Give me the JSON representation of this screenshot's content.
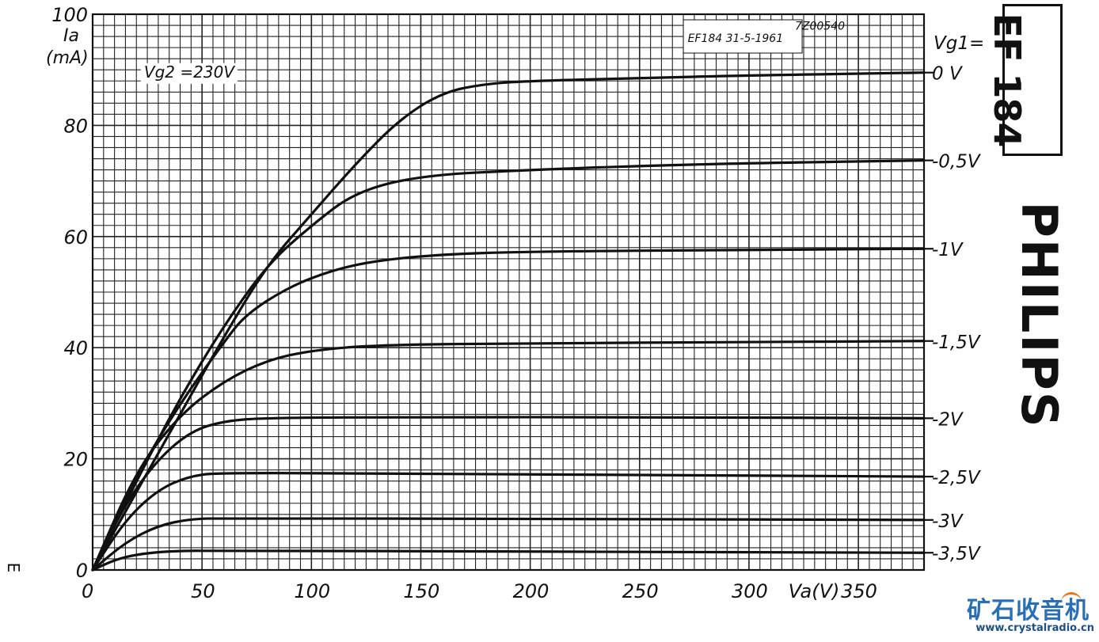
{
  "chart_data": {
    "type": "line",
    "title": "",
    "ref_code": "7Z00540",
    "datasheet_ref": "EF184 31-5-1961",
    "condition": "Vg2 =230V",
    "xlabel": "Va(V)",
    "ylabel_line1": "Ia",
    "ylabel_line2": "(mA)",
    "series_label_header": "Vg1=",
    "xlim": [
      0,
      380
    ],
    "ylim": [
      0,
      100
    ],
    "grid": true,
    "x_ticks": [
      {
        "v": 0,
        "label": "0"
      },
      {
        "v": 50,
        "label": "50"
      },
      {
        "v": 100,
        "label": "100"
      },
      {
        "v": 150,
        "label": "150"
      },
      {
        "v": 200,
        "label": "200"
      },
      {
        "v": 250,
        "label": "250"
      },
      {
        "v": 300,
        "label": "300"
      },
      {
        "v": 350,
        "label": "350"
      }
    ],
    "y_ticks": [
      {
        "v": 0,
        "label": "0"
      },
      {
        "v": 20,
        "label": "20"
      },
      {
        "v": 40,
        "label": "40"
      },
      {
        "v": 60,
        "label": "60"
      },
      {
        "v": 80,
        "label": "80"
      },
      {
        "v": 100,
        "label": "100"
      }
    ],
    "series": [
      {
        "name": "0 V",
        "points": [
          [
            0,
            0
          ],
          [
            20,
            14
          ],
          [
            40,
            28
          ],
          [
            60,
            42
          ],
          [
            80,
            55
          ],
          [
            100,
            64
          ],
          [
            120,
            73
          ],
          [
            140,
            81
          ],
          [
            160,
            86
          ],
          [
            180,
            87.5
          ],
          [
            200,
            88
          ],
          [
            250,
            88.5
          ],
          [
            300,
            89
          ],
          [
            380,
            89.5
          ]
        ]
      },
      {
        "name": "-0,5V",
        "points": [
          [
            0,
            0
          ],
          [
            20,
            16
          ],
          [
            40,
            31
          ],
          [
            60,
            44
          ],
          [
            80,
            55
          ],
          [
            100,
            62
          ],
          [
            120,
            68
          ],
          [
            150,
            71
          ],
          [
            200,
            72
          ],
          [
            250,
            72.7
          ],
          [
            300,
            73.2
          ],
          [
            380,
            73.7
          ]
        ]
      },
      {
        "name": "-1V",
        "points": [
          [
            0,
            0
          ],
          [
            20,
            17
          ],
          [
            40,
            30
          ],
          [
            60,
            41
          ],
          [
            70,
            46
          ],
          [
            90,
            51
          ],
          [
            110,
            54
          ],
          [
            130,
            55.7
          ],
          [
            160,
            56.8
          ],
          [
            200,
            57.3
          ],
          [
            300,
            57.6
          ],
          [
            380,
            57.8
          ]
        ]
      },
      {
        "name": "-1,5V",
        "points": [
          [
            0,
            0
          ],
          [
            20,
            18
          ],
          [
            40,
            28
          ],
          [
            60,
            34
          ],
          [
            80,
            37.8
          ],
          [
            100,
            39.5
          ],
          [
            130,
            40.5
          ],
          [
            200,
            40.8
          ],
          [
            300,
            41
          ],
          [
            380,
            41.2
          ]
        ]
      },
      {
        "name": "-2V",
        "points": [
          [
            0,
            0
          ],
          [
            15,
            12
          ],
          [
            30,
            20
          ],
          [
            45,
            25
          ],
          [
            60,
            26.8
          ],
          [
            80,
            27.4
          ],
          [
            150,
            27.5
          ],
          [
            250,
            27.5
          ],
          [
            380,
            27.3
          ]
        ]
      },
      {
        "name": "-2,5V",
        "points": [
          [
            0,
            0
          ],
          [
            15,
            9
          ],
          [
            30,
            14.5
          ],
          [
            45,
            17
          ],
          [
            60,
            17.5
          ],
          [
            150,
            17.3
          ],
          [
            250,
            17.1
          ],
          [
            380,
            16.8
          ]
        ]
      },
      {
        "name": "-3V",
        "points": [
          [
            0,
            0
          ],
          [
            15,
            5
          ],
          [
            30,
            8
          ],
          [
            45,
            9.2
          ],
          [
            60,
            9.3
          ],
          [
            200,
            9.2
          ],
          [
            380,
            9.0
          ]
        ]
      },
      {
        "name": "-3,5V",
        "points": [
          [
            0,
            0
          ],
          [
            10,
            1.8
          ],
          [
            20,
            2.8
          ],
          [
            35,
            3.4
          ],
          [
            60,
            3.5
          ],
          [
            200,
            3.3
          ],
          [
            380,
            3.1
          ]
        ]
      }
    ]
  },
  "tube_type": "EF 184",
  "brand": "PHILIPS",
  "margin_mark": "E",
  "watermark": {
    "cn": "矿石收音机",
    "url": "www.crystalradio.cn"
  }
}
